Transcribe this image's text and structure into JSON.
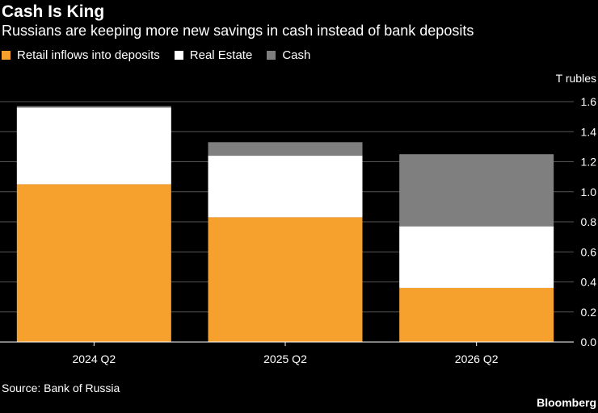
{
  "header": {
    "title": "Cash Is King",
    "subtitle": "Russians are keeping more new savings in cash instead of bank deposits"
  },
  "legend": [
    {
      "label": "Retail inflows into deposits",
      "color": "#f6a02d"
    },
    {
      "label": "Real Estate",
      "color": "#ffffff"
    },
    {
      "label": "Cash",
      "color": "#7f7f7f"
    }
  ],
  "footer": {
    "source": "Source: Bank of Russia",
    "brand": "Bloomberg"
  },
  "chart_data": {
    "type": "bar",
    "stacked": true,
    "categories": [
      "2024 Q2",
      "2025 Q2",
      "2026 Q2"
    ],
    "series": [
      {
        "name": "Retail inflows into deposits",
        "color": "#f6a02d",
        "values": [
          1.05,
          0.83,
          0.36
        ]
      },
      {
        "name": "Real Estate",
        "color": "#ffffff",
        "values": [
          0.51,
          0.41,
          0.41
        ]
      },
      {
        "name": "Cash",
        "color": "#7f7f7f",
        "values": [
          0.01,
          0.09,
          0.48
        ]
      }
    ],
    "title": "Cash Is King",
    "ylabel": "T rubles",
    "ylim": [
      0,
      1.6
    ],
    "yticks": [
      "0.0",
      "0.2",
      "0.4",
      "0.6",
      "0.8",
      "1.0",
      "1.2",
      "1.4",
      "1.6"
    ],
    "grid": true,
    "axis_position": "right",
    "legend_position": "top-left"
  }
}
